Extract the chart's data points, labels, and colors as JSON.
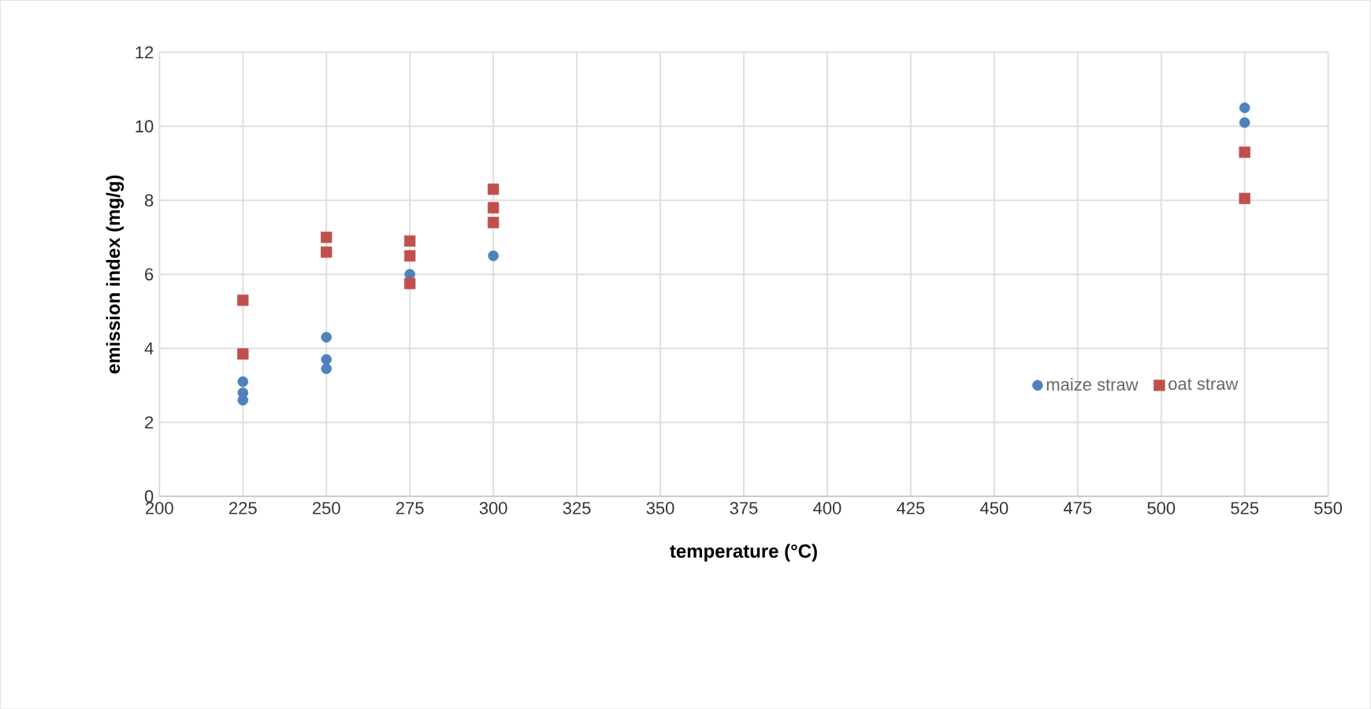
{
  "chart_data": {
    "type": "scatter",
    "xlabel": "temperature (°C)",
    "ylabel": "emission index (mg/g)",
    "xlim": [
      200,
      550
    ],
    "xticks": [
      200,
      225,
      250,
      275,
      300,
      325,
      350,
      375,
      400,
      425,
      450,
      475,
      500,
      525,
      550
    ],
    "ylim": [
      0,
      12
    ],
    "yticks": [
      0,
      2,
      4,
      6,
      8,
      10,
      12
    ],
    "grid": true,
    "legend": "right",
    "series": [
      {
        "name": "maize straw",
        "color": "#4f81bd",
        "marker": "circle",
        "x": [
          225,
          225,
          225,
          250,
          250,
          250,
          275,
          300,
          525,
          525
        ],
        "values": [
          3.1,
          2.8,
          2.6,
          4.3,
          3.7,
          3.45,
          6.0,
          6.5,
          10.5,
          10.1
        ]
      },
      {
        "name": "oat straw",
        "color": "#c0504d",
        "marker": "square",
        "x": [
          225,
          225,
          250,
          250,
          275,
          275,
          275,
          300,
          300,
          300,
          525,
          525
        ],
        "values": [
          5.3,
          3.85,
          7.0,
          6.6,
          6.9,
          6.5,
          5.75,
          8.3,
          7.8,
          7.4,
          9.3,
          8.05
        ]
      }
    ]
  }
}
